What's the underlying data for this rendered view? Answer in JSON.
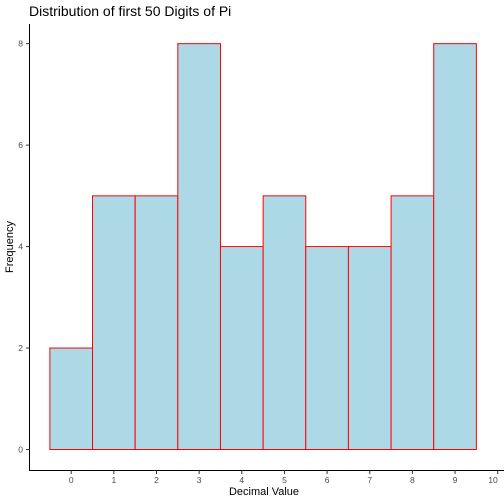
{
  "chart_data": {
    "type": "bar",
    "title": "Distribution of first 50 Digits of Pi",
    "xlabel": "Decimal Value",
    "ylabel": "Frequency",
    "categories": [
      0,
      1,
      2,
      3,
      4,
      5,
      6,
      7,
      8,
      9
    ],
    "values": [
      2,
      5,
      5,
      8,
      4,
      5,
      4,
      4,
      5,
      8
    ],
    "bin_width": 1,
    "xlim": [
      -0.5,
      10
    ],
    "ylim": [
      0,
      8
    ],
    "x_ticks": [
      0,
      1,
      2,
      3,
      4,
      5,
      6,
      7,
      8,
      9,
      10
    ],
    "y_ticks": [
      0,
      2,
      4,
      6,
      8
    ],
    "grid": false,
    "legend": "none",
    "colors": {
      "fill": "#ADD8E6",
      "outline": "#FF0000"
    }
  }
}
